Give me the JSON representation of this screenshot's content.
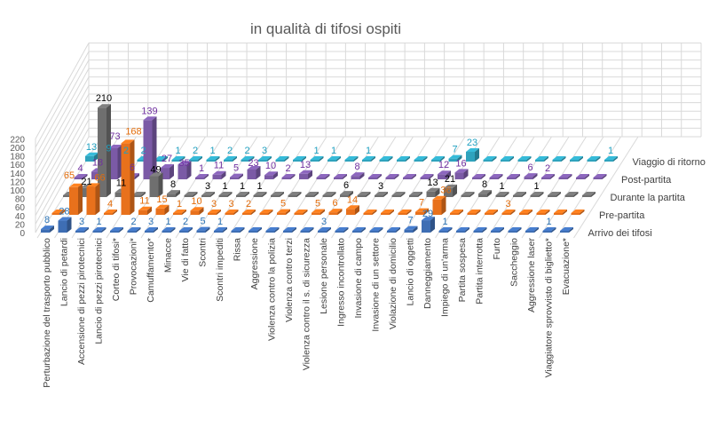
{
  "chart_data": {
    "type": "bar",
    "title": "in qualità di tifosi ospiti",
    "ylim": [
      0,
      220
    ],
    "yticks": [
      "0",
      "20",
      "40",
      "60",
      "80",
      "100",
      "120",
      "140",
      "160",
      "180",
      "200",
      "220"
    ],
    "grid": true,
    "legend": "right (row labels)",
    "categories": [
      "Perturbazione del trasporto pubblico",
      "Lancio di petardi",
      "Accensione di pezzi pirotecnici",
      "Lancio di pezzi pirotecnici",
      "Corteo di tifosi*",
      "Provocazioni*",
      "Camuffamento*",
      "Minacce",
      "Vie di fatto",
      "Scontri",
      "Scontri impediti",
      "Rissa",
      "Aggressione",
      "Violenza contro la polizia",
      "Violenza contro terzi",
      "Violenza contro il s. di sicurezza",
      "Lesione personale",
      "Ingresso incontrollato",
      "Invasione di campo",
      "Invasione di un settore",
      "Violazione di domicilio",
      "Lancio di oggetti",
      "Danneggiamento",
      "Impiego di un'arma",
      "Partita sospesa",
      "Partita interrotta",
      "Furto",
      "Saccheggio",
      "Aggressione laser",
      "Viaggiatore sprovvisto di biglietto*",
      "Evacuazione*"
    ],
    "series": [
      {
        "name": "Arrivo dei tifosi",
        "color": "#3e6eb4",
        "label_color": "#2e75b6",
        "values": [
          8,
          28,
          3,
          1,
          0,
          2,
          3,
          1,
          2,
          5,
          1,
          0,
          0,
          0,
          0,
          0,
          3,
          0,
          0,
          0,
          0,
          7,
          29,
          1,
          0,
          0,
          0,
          0,
          0,
          1,
          0
        ]
      },
      {
        "name": "Pre-partita",
        "color": "#e8711c",
        "label_color": "#e36c0a",
        "values": [
          0,
          65,
          66,
          4,
          168,
          11,
          15,
          1,
          10,
          3,
          3,
          2,
          0,
          5,
          0,
          5,
          6,
          14,
          0,
          0,
          0,
          7,
          36,
          0,
          0,
          0,
          3,
          0,
          0,
          0,
          0
        ]
      },
      {
        "name": "Durante la partita",
        "color": "#6f6f6f",
        "label_color": "#000000",
        "values": [
          0,
          21,
          210,
          11,
          0,
          49,
          8,
          0,
          3,
          1,
          1,
          1,
          0,
          0,
          0,
          0,
          6,
          0,
          3,
          0,
          0,
          13,
          21,
          0,
          8,
          1,
          0,
          1,
          0,
          0,
          0
        ]
      },
      {
        "name": "Post-partita",
        "color": "#7b5aa6",
        "label_color": "#7030a0",
        "values": [
          4,
          18,
          73,
          6,
          139,
          27,
          35,
          1,
          11,
          5,
          23,
          10,
          2,
          13,
          0,
          0,
          8,
          0,
          0,
          0,
          0,
          12,
          16,
          0,
          0,
          0,
          6,
          2,
          0,
          0,
          0
        ]
      },
      {
        "name": "Viaggio di ritorno",
        "color": "#2fa3bd",
        "label_color": "#1fa0c0",
        "values": [
          13,
          9,
          2,
          2,
          0,
          1,
          2,
          1,
          2,
          2,
          3,
          0,
          0,
          1,
          1,
          0,
          1,
          0,
          0,
          0,
          0,
          7,
          23,
          0,
          0,
          0,
          0,
          0,
          0,
          0,
          1
        ]
      }
    ]
  }
}
